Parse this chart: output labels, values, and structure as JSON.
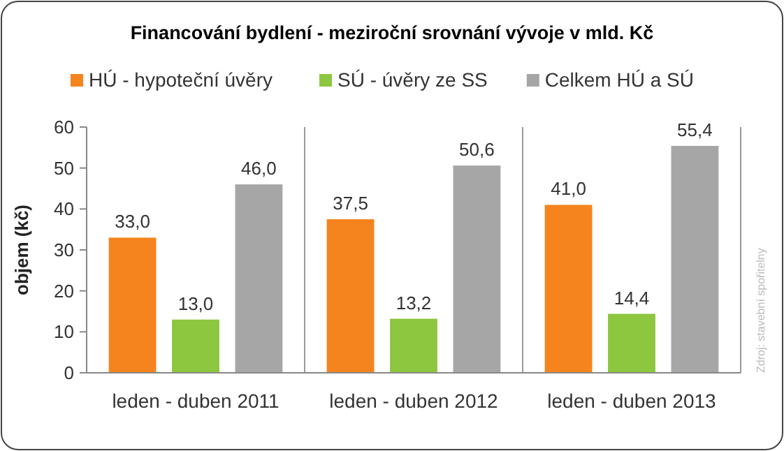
{
  "chart_data": {
    "type": "bar",
    "title": "Financování bydlení - meziroční srovnání vývoje v mld. Kč",
    "ylabel": "objem (kč)",
    "categories": [
      "leden - duben 2011",
      "leden - duben 2012",
      "leden - duben 2013"
    ],
    "series": [
      {
        "name": "HÚ - hypoteční úvěry",
        "color": "#f5841f",
        "values": [
          33.0,
          37.5,
          41.0
        ],
        "value_labels": [
          "33,0",
          "37,5",
          "41,0"
        ]
      },
      {
        "name": "SÚ - úvěry ze SS",
        "color": "#8dc63f",
        "values": [
          13.0,
          13.2,
          14.4
        ],
        "value_labels": [
          "13,0",
          "13,2",
          "14,4"
        ]
      },
      {
        "name": "Celkem HÚ a SÚ",
        "color": "#a6a6a6",
        "values": [
          46.0,
          50.6,
          55.4
        ],
        "value_labels": [
          "46,0",
          "50,6",
          "55,4"
        ]
      }
    ],
    "ylim": [
      0,
      60
    ],
    "yticks": [
      0,
      10,
      20,
      30,
      40,
      50,
      60
    ],
    "grid": "x",
    "legend": "top",
    "annotations": [
      "Zdroj: stavební spořitelny"
    ]
  }
}
